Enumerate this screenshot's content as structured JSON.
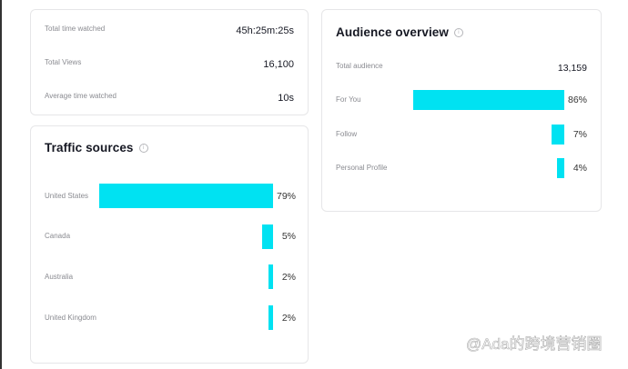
{
  "summary": {
    "rows": [
      {
        "label": "Total time watched",
        "value": "45h:25m:25s"
      },
      {
        "label": "Total Views",
        "value": "16,100"
      },
      {
        "label": "Average time watched",
        "value": "10s"
      }
    ]
  },
  "traffic": {
    "title": "Traffic sources",
    "rows": [
      {
        "label": "United States",
        "percent": 79,
        "text": "79%"
      },
      {
        "label": "Canada",
        "percent": 5,
        "text": "5%"
      },
      {
        "label": "Australia",
        "percent": 2,
        "text": "2%"
      },
      {
        "label": "United Kingdom",
        "percent": 2,
        "text": "2%"
      }
    ]
  },
  "audience": {
    "title": "Audience overview",
    "total_label": "Total audience",
    "total_value": "13,159",
    "rows": [
      {
        "label": "For You",
        "percent": 86,
        "text": "86%"
      },
      {
        "label": "Follow",
        "percent": 7,
        "text": "7%"
      },
      {
        "label": "Personal Profile",
        "percent": 4,
        "text": "4%"
      }
    ]
  },
  "colors": {
    "bar": "#00e2f2"
  },
  "watermark": "@Ada的跨境营销圈"
}
